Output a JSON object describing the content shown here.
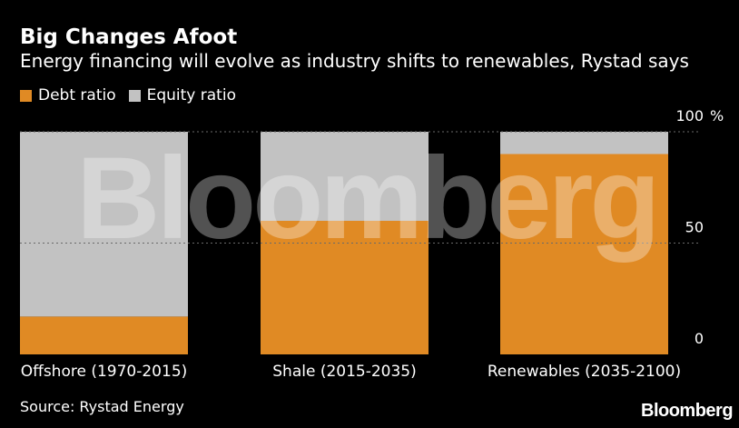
{
  "header": {
    "title": "Big Changes Afoot",
    "subtitle": "Energy financing will evolve as industry shifts to renewables, Rystad says"
  },
  "legend": {
    "items": [
      {
        "label": "Debt ratio",
        "color": "#e08a24"
      },
      {
        "label": "Equity ratio",
        "color": "#c2c2c2"
      }
    ]
  },
  "footer": {
    "source": "Source: Rystad Energy",
    "brand": "Bloomberg"
  },
  "watermark": "Bloomberg",
  "chart_data": {
    "type": "bar",
    "stacked": true,
    "categories": [
      "Offshore (1970-2015)",
      "Shale (2015-2035)",
      "Renewables (2035-2100)"
    ],
    "series": [
      {
        "name": "Debt ratio",
        "values": [
          17,
          60,
          90
        ],
        "color": "#e08a24"
      },
      {
        "name": "Equity ratio",
        "values": [
          83,
          40,
          10
        ],
        "color": "#c2c2c2"
      }
    ],
    "ylim": [
      0,
      100
    ],
    "y_ticks": [
      0,
      50,
      100
    ],
    "y_tick_labels": [
      "0",
      "50",
      "100"
    ],
    "y_unit": "%",
    "y_axis_position": "right",
    "grid": true
  }
}
